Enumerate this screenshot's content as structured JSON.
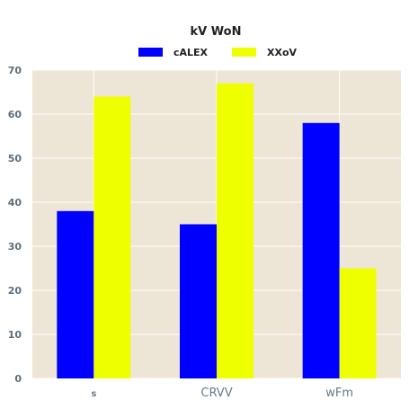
{
  "chart_data": {
    "type": "bar",
    "title": "kV WoN",
    "categories": [
      "s",
      "CRVV",
      "wFm"
    ],
    "series": [
      {
        "name": "cALEX",
        "values": [
          38,
          35,
          58
        ],
        "color": "#0000ff"
      },
      {
        "name": "XXoV",
        "values": [
          64,
          67,
          25
        ],
        "color": "#eeff00"
      }
    ],
    "xlabel": "",
    "ylabel": "",
    "ylim": [
      0,
      70
    ],
    "yticks": [
      0,
      10,
      20,
      30,
      40,
      50,
      60,
      70
    ],
    "grid": true,
    "legend_position": "top-center",
    "background_color": "#ede6d6",
    "grid_color": "#ffffff"
  }
}
